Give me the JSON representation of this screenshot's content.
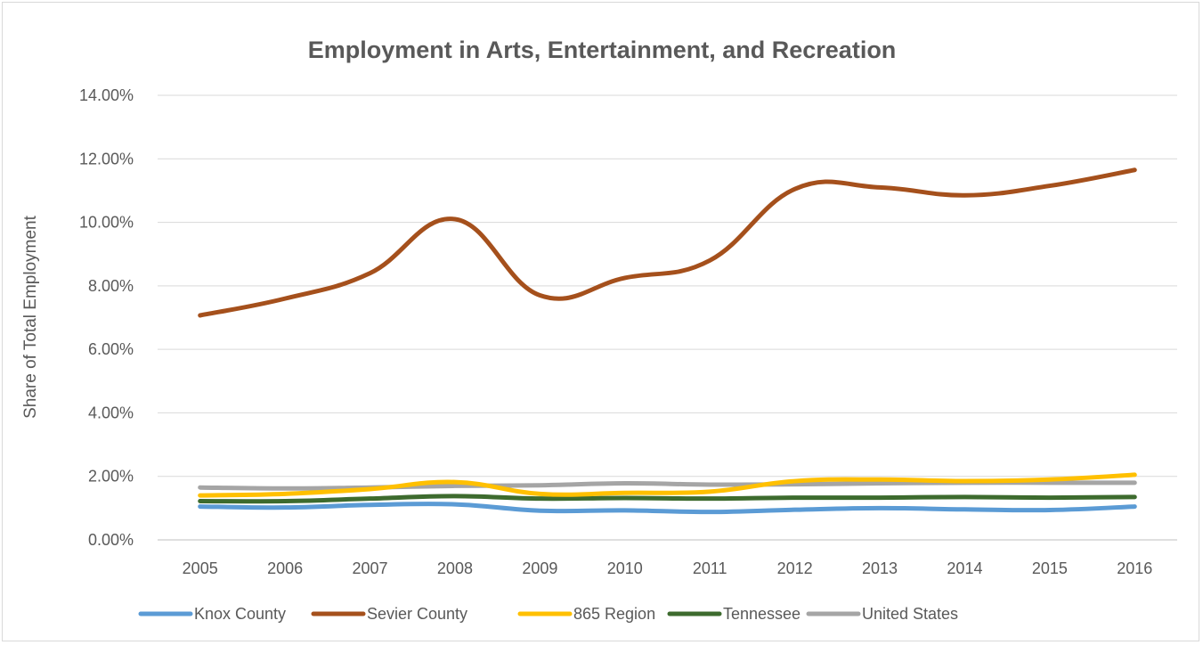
{
  "chart_data": {
    "type": "line",
    "title": "Employment in Arts, Entertainment, and Recreation",
    "xlabel": "",
    "ylabel": "Share of Total Employment",
    "categories": [
      "2005",
      "2006",
      "2007",
      "2008",
      "2009",
      "2010",
      "2011",
      "2012",
      "2013",
      "2014",
      "2015",
      "2016"
    ],
    "y_ticks": [
      "0.00%",
      "2.00%",
      "4.00%",
      "6.00%",
      "8.00%",
      "10.00%",
      "12.00%",
      "14.00%"
    ],
    "ylim": [
      0,
      14
    ],
    "y_unit": "percent",
    "grid": "horizontal",
    "legend_position": "bottom",
    "series": [
      {
        "name": "Knox County",
        "color": "#5b9bd5",
        "values": [
          1.05,
          1.02,
          1.1,
          1.12,
          0.92,
          0.93,
          0.88,
          0.95,
          1.0,
          0.96,
          0.94,
          1.05
        ]
      },
      {
        "name": "Sevier County",
        "color": "#a5501c",
        "values": [
          7.07,
          7.6,
          8.4,
          10.1,
          7.7,
          8.25,
          8.8,
          11.05,
          11.1,
          10.85,
          11.15,
          11.65
        ]
      },
      {
        "name": "865 Region",
        "color": "#ffc000",
        "values": [
          1.4,
          1.45,
          1.6,
          1.82,
          1.45,
          1.48,
          1.52,
          1.85,
          1.9,
          1.85,
          1.9,
          2.05
        ]
      },
      {
        "name": "Tennessee",
        "color": "#3d6b2e",
        "values": [
          1.22,
          1.22,
          1.3,
          1.38,
          1.3,
          1.32,
          1.3,
          1.33,
          1.33,
          1.35,
          1.33,
          1.35
        ]
      },
      {
        "name": "United States",
        "color": "#a5a5a5",
        "values": [
          1.65,
          1.62,
          1.65,
          1.7,
          1.72,
          1.78,
          1.74,
          1.75,
          1.78,
          1.8,
          1.8,
          1.8
        ]
      }
    ]
  }
}
